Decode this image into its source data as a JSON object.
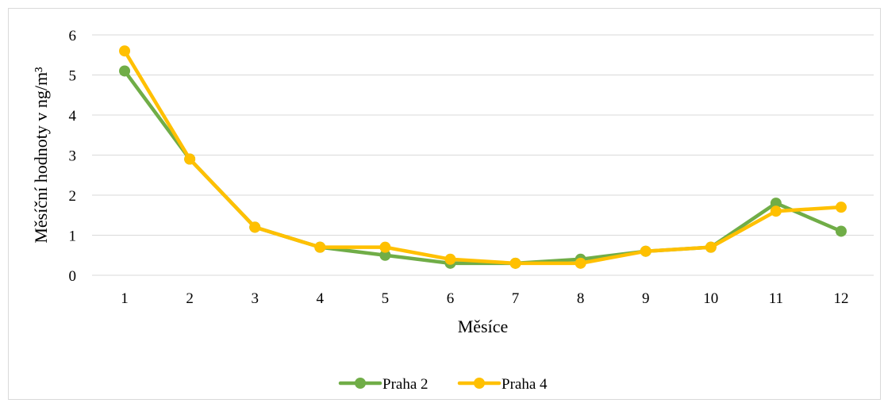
{
  "chart_data": {
    "type": "line",
    "title": "",
    "xlabel": "Měsíce",
    "ylabel": "Měsíční hodnoty v ng/m³",
    "categories": [
      "1",
      "2",
      "3",
      "4",
      "5",
      "6",
      "7",
      "8",
      "9",
      "10",
      "11",
      "12"
    ],
    "yticks": [
      "0",
      "1",
      "2",
      "3",
      "4",
      "5",
      "6"
    ],
    "ylim": [
      0,
      6
    ],
    "grid": true,
    "legend_position": "bottom",
    "series": [
      {
        "name": "Praha 2",
        "color": "#70ad47",
        "values": [
          5.1,
          2.9,
          1.2,
          0.7,
          0.5,
          0.3,
          0.3,
          0.4,
          0.6,
          0.7,
          1.8,
          1.1
        ]
      },
      {
        "name": "Praha 4",
        "color": "#ffc000",
        "values": [
          5.6,
          2.9,
          1.2,
          0.7,
          0.7,
          0.4,
          0.3,
          0.3,
          0.6,
          0.7,
          1.6,
          1.7
        ]
      }
    ]
  }
}
